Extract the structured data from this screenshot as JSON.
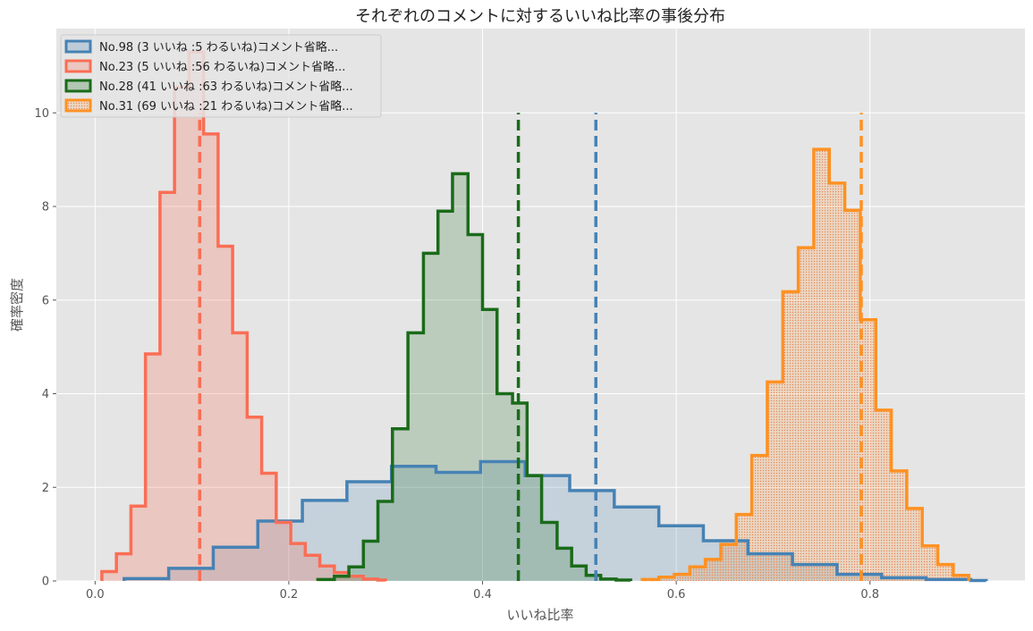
{
  "chart_data": {
    "type": "histogram",
    "title": "それぞれのコメントに対するいいね比率の事後分布",
    "xlabel": "いいね比率",
    "ylabel": "確率密度",
    "xlim": [
      -0.04,
      0.96
    ],
    "ylim": [
      0,
      11.8
    ],
    "xticks": [
      0.0,
      0.2,
      0.4,
      0.6,
      0.8
    ],
    "xtick_labels": [
      "0.0",
      "0.2",
      "0.4",
      "0.6",
      "0.8"
    ],
    "yticks": [
      0,
      2,
      4,
      6,
      8,
      10
    ],
    "ytick_labels": [
      "0",
      "2",
      "4",
      "6",
      "8",
      "10"
    ],
    "grid": true,
    "legend_position": "top-left",
    "series": [
      {
        "name": "No.98 (3 いいね :5 わるいね)コメント省略...",
        "color": "#4682b4",
        "mean": 0.517,
        "edges": [
          0.03,
          0.076,
          0.122,
          0.168,
          0.214,
          0.26,
          0.306,
          0.352,
          0.398,
          0.444,
          0.49,
          0.536,
          0.582,
          0.628,
          0.674,
          0.72,
          0.766,
          0.812,
          0.858,
          0.904,
          0.92
        ],
        "densities": [
          0.05,
          0.27,
          0.72,
          1.28,
          1.72,
          2.12,
          2.45,
          2.32,
          2.55,
          2.25,
          1.93,
          1.58,
          1.18,
          0.86,
          0.58,
          0.35,
          0.14,
          0.07,
          0.03,
          0.01
        ]
      },
      {
        "name": "No.23 (5 いいね :56 わるいね)コメント省略...",
        "color": "#fa6e55",
        "mean": 0.108,
        "edges": [
          0.007,
          0.022,
          0.037,
          0.052,
          0.067,
          0.082,
          0.097,
          0.112,
          0.127,
          0.142,
          0.157,
          0.172,
          0.187,
          0.202,
          0.217,
          0.232,
          0.247,
          0.262,
          0.277,
          0.292,
          0.3
        ],
        "densities": [
          0.2,
          0.58,
          1.6,
          4.85,
          8.3,
          10.55,
          11.3,
          9.55,
          7.15,
          5.3,
          3.5,
          2.3,
          1.25,
          0.8,
          0.55,
          0.32,
          0.18,
          0.1,
          0.04,
          0.02
        ]
      },
      {
        "name": "No.28 (41 いいね :63 わるいね)コメント省略...",
        "color": "#1a6b1a",
        "mean": 0.437,
        "edges": [
          0.23,
          0.247,
          0.262,
          0.277,
          0.292,
          0.307,
          0.323,
          0.339,
          0.354,
          0.369,
          0.385,
          0.4,
          0.415,
          0.431,
          0.446,
          0.461,
          0.477,
          0.492,
          0.507,
          0.522,
          0.538,
          0.553
        ],
        "densities": [
          0.03,
          0.1,
          0.3,
          0.85,
          1.7,
          3.25,
          5.3,
          7.0,
          7.9,
          8.7,
          7.4,
          5.8,
          4.0,
          3.8,
          2.25,
          1.25,
          0.7,
          0.32,
          0.12,
          0.04,
          0.02
        ]
      },
      {
        "name": "No.31 (69 いいね :21 わるいね)コメント省略...",
        "color": "#ff9122",
        "mean": 0.791,
        "edges": [
          0.565,
          0.582,
          0.598,
          0.614,
          0.63,
          0.646,
          0.662,
          0.678,
          0.694,
          0.71,
          0.726,
          0.742,
          0.758,
          0.774,
          0.79,
          0.806,
          0.822,
          0.838,
          0.854,
          0.87,
          0.886,
          0.902
        ],
        "densities": [
          0.03,
          0.08,
          0.14,
          0.3,
          0.46,
          0.78,
          1.42,
          2.68,
          4.25,
          6.18,
          7.12,
          9.22,
          8.5,
          7.92,
          5.58,
          3.65,
          2.35,
          1.55,
          0.75,
          0.35,
          0.12
        ]
      }
    ]
  }
}
